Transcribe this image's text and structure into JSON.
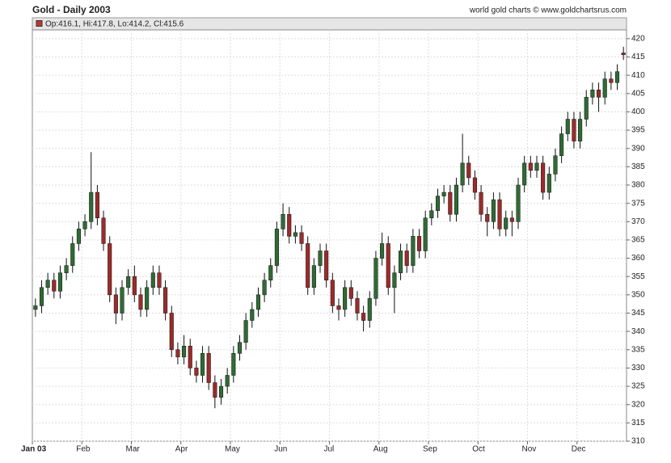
{
  "chart_data": {
    "type": "candlestick",
    "title": "Gold - Daily 2003",
    "source": "world gold charts © www.goldchartsrus.com",
    "legend_text": "Op:416.1, Hi:417.8, Lo:414.2, Cl:415.6",
    "categories": [
      "Jan 03",
      null,
      null,
      null,
      null,
      null,
      null,
      null,
      "Feb",
      null,
      null,
      null,
      null,
      null,
      null,
      null,
      "Mar",
      null,
      null,
      null,
      null,
      null,
      null,
      null,
      "Apr",
      null,
      null,
      null,
      null,
      null,
      null,
      null,
      "May",
      null,
      null,
      null,
      null,
      null,
      null,
      null,
      "Jun",
      null,
      null,
      null,
      null,
      null,
      null,
      null,
      "Jul",
      null,
      null,
      null,
      null,
      null,
      null,
      null,
      "Aug",
      null,
      null,
      null,
      null,
      null,
      null,
      null,
      "Sep",
      null,
      null,
      null,
      null,
      null,
      null,
      null,
      "Oct",
      null,
      null,
      null,
      null,
      null,
      null,
      null,
      "Nov",
      null,
      null,
      null,
      null,
      null,
      null,
      null,
      "Dec",
      null,
      null,
      null,
      null,
      null,
      null,
      null
    ],
    "open": [
      346,
      347,
      352,
      354,
      351,
      356,
      358,
      364,
      368,
      370,
      378,
      371,
      364,
      350,
      345,
      352,
      355,
      350,
      346,
      352,
      356,
      352,
      345,
      335,
      333,
      336,
      330,
      328,
      334,
      326,
      322,
      325,
      328,
      334,
      337,
      343,
      346,
      350,
      354,
      358,
      368,
      372,
      366,
      367,
      364,
      352,
      358,
      362,
      354,
      347,
      346,
      352,
      349,
      345,
      343,
      349,
      360,
      364,
      352,
      356,
      362,
      358,
      366,
      362,
      371,
      373,
      377,
      378,
      372,
      380,
      386,
      382,
      378,
      372,
      370,
      376,
      368,
      371,
      370,
      380,
      386,
      384,
      386,
      378,
      383,
      388,
      394,
      398,
      392,
      398,
      404,
      406,
      404,
      409,
      408,
      416.1
    ],
    "high": [
      349,
      354,
      356,
      356,
      358,
      360,
      366,
      370,
      372,
      389,
      380,
      373,
      366,
      352,
      354,
      357,
      358,
      352,
      354,
      358,
      358,
      354,
      347,
      337,
      339,
      338,
      332,
      336,
      336,
      328,
      327,
      330,
      336,
      339,
      345,
      348,
      352,
      356,
      360,
      370,
      375,
      374,
      369,
      369,
      366,
      360,
      364,
      364,
      356,
      349,
      354,
      354,
      351,
      347,
      351,
      362,
      367,
      366,
      358,
      364,
      364,
      368,
      368,
      373,
      375,
      379,
      380,
      380,
      382,
      394,
      388,
      384,
      380,
      374,
      378,
      378,
      373,
      373,
      382,
      388,
      388,
      388,
      388,
      385,
      390,
      396,
      400,
      400,
      400,
      406,
      408,
      408,
      411,
      411,
      413,
      417.8
    ],
    "low": [
      344,
      345,
      350,
      349,
      349,
      354,
      356,
      362,
      366,
      368,
      369,
      362,
      348,
      342,
      343,
      350,
      348,
      344,
      344,
      350,
      350,
      343,
      333,
      331,
      331,
      328,
      326,
      326,
      324,
      319,
      320,
      323,
      326,
      332,
      335,
      341,
      344,
      348,
      352,
      356,
      366,
      364,
      364,
      362,
      350,
      350,
      356,
      352,
      345,
      343,
      344,
      347,
      343,
      340,
      341,
      347,
      358,
      350,
      345,
      354,
      356,
      356,
      360,
      360,
      369,
      371,
      375,
      370,
      370,
      378,
      380,
      376,
      370,
      366,
      368,
      366,
      366,
      366,
      368,
      378,
      382,
      382,
      376,
      376,
      381,
      386,
      392,
      390,
      390,
      396,
      402,
      400,
      402,
      406,
      406,
      414.2
    ],
    "close": [
      347,
      352,
      354,
      351,
      356,
      358,
      364,
      368,
      370,
      378,
      371,
      364,
      350,
      345,
      352,
      355,
      350,
      346,
      352,
      356,
      352,
      345,
      335,
      333,
      336,
      330,
      328,
      334,
      326,
      322,
      325,
      328,
      334,
      337,
      343,
      346,
      350,
      354,
      358,
      368,
      372,
      366,
      367,
      364,
      352,
      358,
      362,
      354,
      347,
      346,
      352,
      349,
      345,
      343,
      349,
      360,
      364,
      352,
      356,
      362,
      358,
      366,
      362,
      371,
      373,
      377,
      378,
      372,
      380,
      386,
      382,
      378,
      372,
      370,
      376,
      368,
      371,
      370,
      380,
      386,
      384,
      386,
      378,
      383,
      388,
      394,
      398,
      392,
      398,
      404,
      406,
      404,
      409,
      408,
      411,
      415.6
    ],
    "up_color": "#2f6b35",
    "down_color": "#9c2b2b",
    "ylim": [
      310,
      422.4
    ],
    "yticks": [
      310,
      315,
      320,
      325,
      330,
      335,
      340,
      345,
      350,
      355,
      360,
      365,
      370,
      375,
      380,
      385,
      390,
      395,
      400,
      405,
      410,
      415,
      420
    ],
    "grid": true
  }
}
